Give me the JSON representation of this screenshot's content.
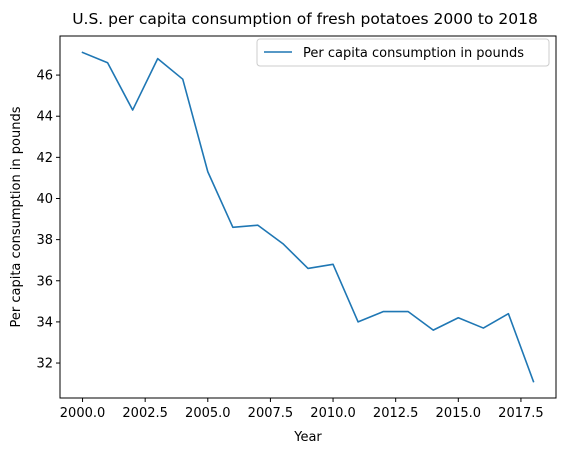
{
  "chart_data": {
    "type": "line",
    "title": "U.S. per capita consumption of fresh potatoes 2000 to 2018",
    "xlabel": "Year",
    "ylabel": "Per capita consumption in pounds",
    "xlim": [
      1999.1,
      2018.9
    ],
    "ylim": [
      30.3,
      47.9
    ],
    "x_ticks": [
      2000.0,
      2002.5,
      2005.0,
      2007.5,
      2010.0,
      2012.5,
      2015.0,
      2017.5
    ],
    "x_tick_labels": [
      "2000.0",
      "2002.5",
      "2005.0",
      "2007.5",
      "2010.0",
      "2012.5",
      "2015.0",
      "2017.5"
    ],
    "y_ticks": [
      32,
      34,
      36,
      38,
      40,
      42,
      44,
      46
    ],
    "y_tick_labels": [
      "32",
      "34",
      "36",
      "38",
      "40",
      "42",
      "44",
      "46"
    ],
    "grid": false,
    "legend_position": "top-right",
    "series": [
      {
        "name": "Per capita consumption in pounds",
        "color": "#1f77b4",
        "x": [
          2000,
          2001,
          2002,
          2003,
          2004,
          2005,
          2006,
          2007,
          2008,
          2009,
          2010,
          2011,
          2012,
          2013,
          2014,
          2015,
          2016,
          2017,
          2018
        ],
        "y": [
          47.1,
          46.6,
          44.3,
          46.8,
          45.8,
          41.3,
          38.6,
          38.7,
          37.8,
          36.6,
          36.8,
          34.0,
          34.5,
          34.5,
          33.6,
          34.2,
          33.7,
          34.4,
          31.1
        ]
      }
    ]
  }
}
